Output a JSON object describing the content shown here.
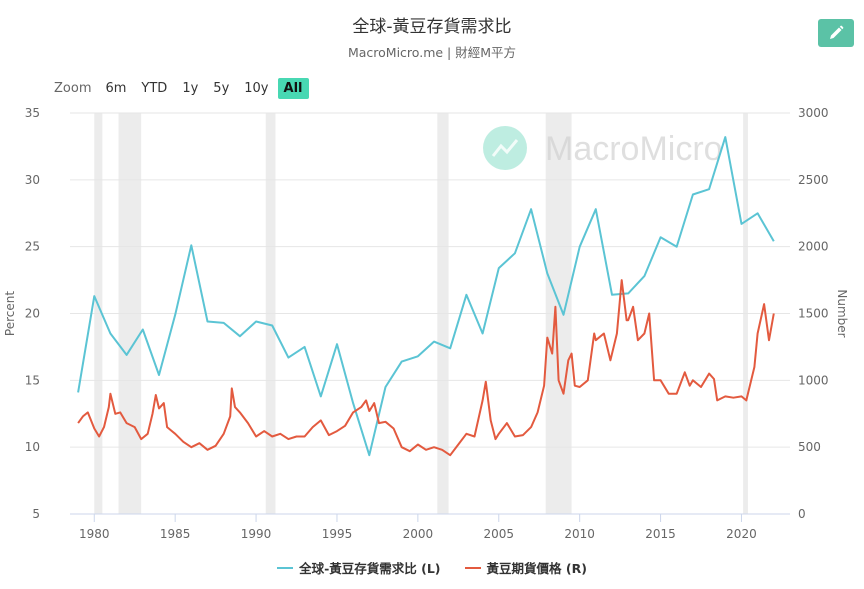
{
  "title": "全球-黃豆存貨需求比",
  "subtitle": "MacroMicro.me | 財經M平方",
  "watermark": "MacroMicro",
  "edit_icon": "pencil-icon",
  "zoom": {
    "label": "Zoom",
    "buttons": [
      "6m",
      "YTD",
      "1y",
      "5y",
      "10y",
      "All"
    ],
    "active": "All"
  },
  "chart_data": {
    "type": "line",
    "x_axis": {
      "range": [
        1978.5,
        2023
      ],
      "ticks": [
        1980,
        1985,
        1990,
        1995,
        2000,
        2005,
        2010,
        2015,
        2020
      ]
    },
    "y_left": {
      "label": "Percent",
      "range": [
        5,
        35
      ],
      "ticks": [
        5,
        10,
        15,
        20,
        25,
        30,
        35
      ]
    },
    "y_right": {
      "label": "Number",
      "range": [
        0,
        3000
      ],
      "ticks": [
        0,
        500,
        1000,
        1500,
        2000,
        2500,
        3000
      ]
    },
    "grid": true,
    "legend": "bottom-center",
    "recession_bands": [
      [
        1980.0,
        1980.5
      ],
      [
        1981.5,
        1982.9
      ],
      [
        1990.6,
        1991.2
      ],
      [
        2001.2,
        2001.9
      ],
      [
        2007.9,
        2009.5
      ],
      [
        2020.1,
        2020.4
      ]
    ],
    "series": [
      {
        "name": "全球-黃豆存貨需求比 (L)",
        "axis": "left",
        "color": "#5bc4d4",
        "points": [
          [
            1979,
            14.1
          ],
          [
            1980,
            21.3
          ],
          [
            1981,
            18.5
          ],
          [
            1982,
            16.9
          ],
          [
            1983,
            18.8
          ],
          [
            1984,
            15.4
          ],
          [
            1985,
            19.9
          ],
          [
            1986,
            25.1
          ],
          [
            1987,
            19.4
          ],
          [
            1988,
            19.3
          ],
          [
            1989,
            18.3
          ],
          [
            1990,
            19.4
          ],
          [
            1991,
            19.1
          ],
          [
            1992,
            16.7
          ],
          [
            1993,
            17.5
          ],
          [
            1994,
            13.8
          ],
          [
            1995,
            17.7
          ],
          [
            1996,
            13.3
          ],
          [
            1997,
            9.4
          ],
          [
            1998,
            14.5
          ],
          [
            1999,
            16.4
          ],
          [
            2000,
            16.8
          ],
          [
            2001,
            17.9
          ],
          [
            2002,
            17.4
          ],
          [
            2003,
            21.4
          ],
          [
            2004,
            18.5
          ],
          [
            2005,
            23.4
          ],
          [
            2006,
            24.5
          ],
          [
            2007,
            27.8
          ],
          [
            2008,
            23.0
          ],
          [
            2009,
            19.9
          ],
          [
            2010,
            25.0
          ],
          [
            2011,
            27.8
          ],
          [
            2012,
            21.4
          ],
          [
            2013,
            21.5
          ],
          [
            2014,
            22.8
          ],
          [
            2015,
            25.7
          ],
          [
            2016,
            25.0
          ],
          [
            2017,
            28.9
          ],
          [
            2018,
            29.3
          ],
          [
            2019,
            33.2
          ],
          [
            2020,
            26.7
          ],
          [
            2021,
            27.5
          ],
          [
            2022,
            25.4
          ]
        ]
      },
      {
        "name": "黃豆期貨價格 (R)",
        "axis": "right",
        "color": "#e35a3f",
        "points": [
          [
            1979.0,
            680
          ],
          [
            1979.3,
            730
          ],
          [
            1979.6,
            760
          ],
          [
            1980.0,
            640
          ],
          [
            1980.3,
            580
          ],
          [
            1980.6,
            650
          ],
          [
            1980.9,
            800
          ],
          [
            1981.0,
            900
          ],
          [
            1981.3,
            750
          ],
          [
            1981.6,
            760
          ],
          [
            1982.0,
            680
          ],
          [
            1982.5,
            650
          ],
          [
            1982.9,
            560
          ],
          [
            1983.3,
            600
          ],
          [
            1983.6,
            750
          ],
          [
            1983.8,
            890
          ],
          [
            1984.0,
            790
          ],
          [
            1984.3,
            830
          ],
          [
            1984.5,
            650
          ],
          [
            1984.8,
            620
          ],
          [
            1985.0,
            600
          ],
          [
            1985.5,
            540
          ],
          [
            1986.0,
            500
          ],
          [
            1986.5,
            530
          ],
          [
            1987.0,
            480
          ],
          [
            1987.5,
            510
          ],
          [
            1988.0,
            600
          ],
          [
            1988.4,
            730
          ],
          [
            1988.5,
            940
          ],
          [
            1988.7,
            800
          ],
          [
            1989.0,
            760
          ],
          [
            1989.5,
            680
          ],
          [
            1990.0,
            580
          ],
          [
            1990.5,
            620
          ],
          [
            1991.0,
            580
          ],
          [
            1991.5,
            600
          ],
          [
            1992.0,
            560
          ],
          [
            1992.5,
            580
          ],
          [
            1993.0,
            580
          ],
          [
            1993.5,
            650
          ],
          [
            1994.0,
            700
          ],
          [
            1994.5,
            590
          ],
          [
            1995.0,
            620
          ],
          [
            1995.5,
            660
          ],
          [
            1996.0,
            760
          ],
          [
            1996.5,
            800
          ],
          [
            1996.8,
            850
          ],
          [
            1997.0,
            770
          ],
          [
            1997.3,
            830
          ],
          [
            1997.6,
            680
          ],
          [
            1998.0,
            690
          ],
          [
            1998.5,
            640
          ],
          [
            1999.0,
            500
          ],
          [
            1999.5,
            470
          ],
          [
            2000.0,
            520
          ],
          [
            2000.5,
            480
          ],
          [
            2001.0,
            500
          ],
          [
            2001.5,
            480
          ],
          [
            2002.0,
            440
          ],
          [
            2002.5,
            520
          ],
          [
            2003.0,
            600
          ],
          [
            2003.5,
            580
          ],
          [
            2004.0,
            850
          ],
          [
            2004.2,
            990
          ],
          [
            2004.5,
            700
          ],
          [
            2004.8,
            560
          ],
          [
            2005.0,
            600
          ],
          [
            2005.5,
            680
          ],
          [
            2006.0,
            580
          ],
          [
            2006.5,
            590
          ],
          [
            2007.0,
            650
          ],
          [
            2007.4,
            760
          ],
          [
            2007.8,
            960
          ],
          [
            2008.0,
            1320
          ],
          [
            2008.3,
            1200
          ],
          [
            2008.5,
            1550
          ],
          [
            2008.7,
            1000
          ],
          [
            2009.0,
            900
          ],
          [
            2009.3,
            1150
          ],
          [
            2009.5,
            1200
          ],
          [
            2009.7,
            960
          ],
          [
            2010.0,
            950
          ],
          [
            2010.5,
            1000
          ],
          [
            2010.9,
            1350
          ],
          [
            2011.0,
            1300
          ],
          [
            2011.5,
            1350
          ],
          [
            2011.9,
            1150
          ],
          [
            2012.3,
            1350
          ],
          [
            2012.6,
            1750
          ],
          [
            2012.9,
            1450
          ],
          [
            2013.0,
            1450
          ],
          [
            2013.3,
            1550
          ],
          [
            2013.6,
            1300
          ],
          [
            2014.0,
            1350
          ],
          [
            2014.3,
            1500
          ],
          [
            2014.6,
            1000
          ],
          [
            2015.0,
            1000
          ],
          [
            2015.5,
            900
          ],
          [
            2016.0,
            900
          ],
          [
            2016.5,
            1060
          ],
          [
            2016.8,
            960
          ],
          [
            2017.0,
            1000
          ],
          [
            2017.5,
            950
          ],
          [
            2018.0,
            1050
          ],
          [
            2018.3,
            1010
          ],
          [
            2018.5,
            850
          ],
          [
            2019.0,
            880
          ],
          [
            2019.5,
            870
          ],
          [
            2020.0,
            880
          ],
          [
            2020.3,
            850
          ],
          [
            2020.8,
            1100
          ],
          [
            2021.0,
            1350
          ],
          [
            2021.4,
            1570
          ],
          [
            2021.7,
            1300
          ],
          [
            2022.0,
            1500
          ]
        ]
      }
    ]
  }
}
